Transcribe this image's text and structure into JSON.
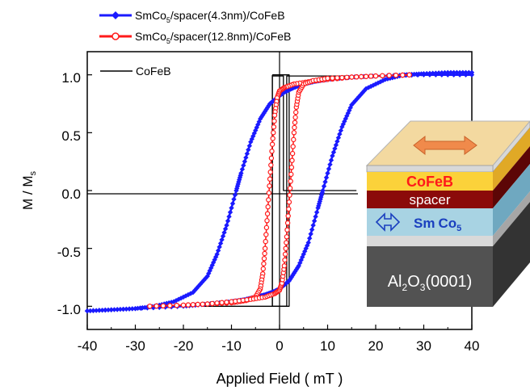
{
  "chart_data": {
    "type": "line",
    "xlabel": "Applied Field ( mT )",
    "ylabel_main": "M / M",
    "ylabel_sub": "s",
    "xlim": [
      -40,
      40
    ],
    "ylim": [
      -1.2,
      1.2
    ],
    "x_ticks": [
      -40,
      -30,
      -20,
      -10,
      0,
      10,
      20,
      30,
      40
    ],
    "x_tick_labels": [
      "-40",
      "-30",
      "-20",
      "-10",
      "0",
      "10",
      "20",
      "30",
      "40"
    ],
    "y_ticks": [
      -1.0,
      -0.5,
      0.0,
      0.5,
      1.0
    ],
    "y_tick_labels": [
      "-1.0",
      "-0.5",
      "0.0",
      "0.5",
      "1.0"
    ],
    "grid": false,
    "legend_position": "top-left",
    "series": [
      {
        "name": "SmCo5/spacer(4.3nm)/CoFeB",
        "legend_parts": [
          "SmCo",
          "5",
          "/spacer(4.3nm)/CoFeB"
        ],
        "color": "#1a1aff",
        "marker": "filled-diamond",
        "descending": {
          "x": [
            40,
            30,
            20,
            15,
            10,
            7,
            5,
            3,
            1,
            0,
            -2,
            -4,
            -6,
            -8,
            -9,
            -11,
            -13,
            -15,
            -18,
            -22,
            -26,
            -30,
            -35,
            -40
          ],
          "y": [
            1.0,
            1.0,
            0.99,
            0.98,
            0.96,
            0.94,
            0.92,
            0.89,
            0.85,
            0.82,
            0.75,
            0.62,
            0.42,
            0.15,
            0.0,
            -0.3,
            -0.55,
            -0.74,
            -0.88,
            -0.96,
            -1.0,
            -1.02,
            -1.03,
            -1.04
          ]
        },
        "ascending": {
          "x": [
            -40,
            -30,
            -20,
            -15,
            -10,
            -7,
            -5,
            -3,
            -1,
            0,
            2,
            4,
            6,
            8,
            9,
            11,
            13,
            15,
            18,
            22,
            26,
            30,
            35,
            40
          ],
          "y": [
            -1.04,
            -1.02,
            -1.0,
            -0.98,
            -0.96,
            -0.94,
            -0.92,
            -0.9,
            -0.87,
            -0.85,
            -0.78,
            -0.65,
            -0.45,
            -0.15,
            0.0,
            0.3,
            0.55,
            0.74,
            0.88,
            0.96,
            1.0,
            1.01,
            1.02,
            1.02
          ]
        }
      },
      {
        "name": "SmCo5/spacer(12.8nm)/CoFeB",
        "legend_parts": [
          "SmCo",
          "5",
          "/spacer(12.8nm)/CoFeB"
        ],
        "color": "#ff1a1a",
        "marker": "open-circle",
        "descending": {
          "x": [
            27,
            20,
            15,
            10,
            6,
            3,
            1,
            0,
            -0.5,
            -1,
            -1.5,
            -2,
            -2.5,
            -3,
            -3.5,
            -4,
            -5,
            -7,
            -10,
            -15,
            -20,
            -27
          ],
          "y": [
            1.0,
            0.99,
            0.98,
            0.96,
            0.94,
            0.92,
            0.89,
            0.86,
            0.8,
            0.65,
            0.4,
            0.1,
            -0.2,
            -0.5,
            -0.72,
            -0.85,
            -0.92,
            -0.95,
            -0.97,
            -0.98,
            -0.99,
            -1.0
          ]
        },
        "ascending": {
          "x": [
            -27,
            -20,
            -15,
            -10,
            -6,
            -3,
            -1,
            0,
            0.5,
            1,
            1.5,
            2,
            2.5,
            3,
            3.5,
            4,
            5,
            7,
            10,
            15,
            20,
            27
          ],
          "y": [
            -1.0,
            -0.99,
            -0.98,
            -0.96,
            -0.94,
            -0.92,
            -0.89,
            -0.86,
            -0.8,
            -0.65,
            -0.4,
            -0.1,
            0.2,
            0.5,
            0.72,
            0.85,
            0.92,
            0.95,
            0.97,
            0.98,
            0.99,
            1.0
          ]
        }
      },
      {
        "name": "CoFeB",
        "legend_parts": [
          "CoFeB",
          "",
          ""
        ],
        "color": "#000000",
        "marker": "none",
        "loop": {
          "x": [
            16,
            0.8,
            0.8,
            -1.5,
            -1.5,
            -16,
            -16,
            1.5,
            1.5,
            16,
            16
          ],
          "y": [
            -0.0,
            -0.0,
            0.99,
            0.99,
            -1.0,
            -1.0,
            -1.0,
            -1.0,
            0.99,
            0.99,
            1.0
          ]
        },
        "outer_box": {
          "x": [
            -1.5,
            2,
            2,
            -1.5,
            -1.5
          ],
          "y": [
            1.0,
            1.0,
            -1.0,
            -1.0,
            1.0
          ]
        }
      }
    ]
  },
  "inset": {
    "layers": [
      {
        "name": "CoFeB",
        "color": "#fbd23a",
        "text_color": "#ff1a1a"
      },
      {
        "name": "spacer",
        "color": "#8b0a0a",
        "text_color": "#ffffff"
      },
      {
        "name": "SmCo5",
        "label_main": "Sm",
        "label_co": "Co",
        "label_sub": "5",
        "color": "#a8d3e3",
        "text_color": "#1a3fbf"
      },
      {
        "name": "gap",
        "color": "#d9d9d9"
      },
      {
        "name": "Al2O3(0001)",
        "label_a": "Al",
        "label_b": "2",
        "label_c": "O",
        "label_d": "3",
        "label_e": "(0001)",
        "color": "#525252",
        "text_color": "#ffffff"
      }
    ],
    "top_color": "#f3d9a0",
    "arrow_color": "#f08a4b"
  }
}
